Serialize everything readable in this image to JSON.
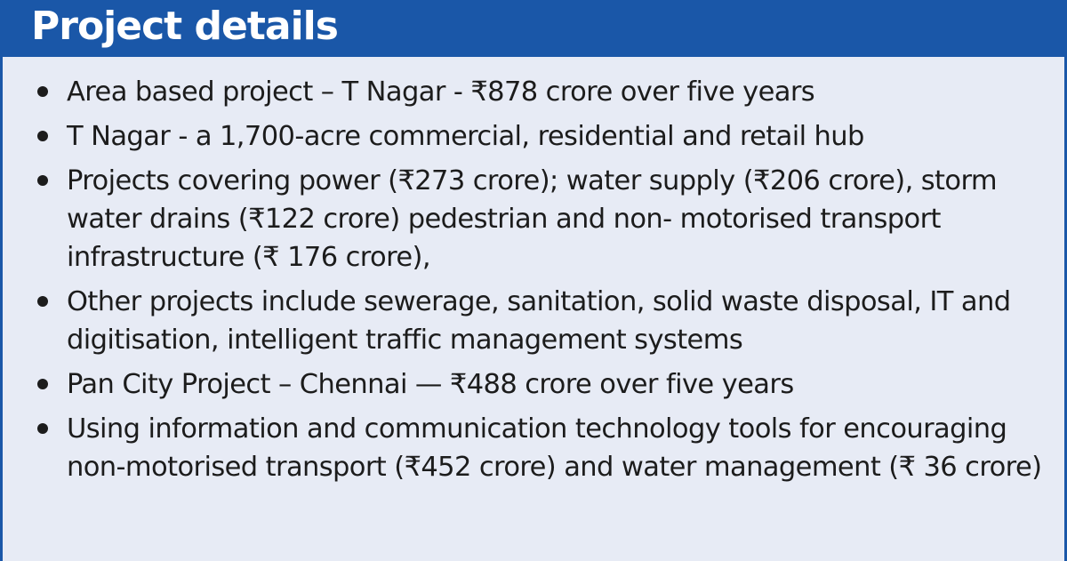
{
  "title": "Project details",
  "colors": {
    "header_background": "#1a57a8",
    "panel_background": "#e7ebf5",
    "text": "#1c1c1c"
  },
  "bullets": [
    "Area based project – T Nagar - ₹878 crore over five years",
    "T Nagar - a 1,700-acre commercial, residential and retail hub",
    "Projects covering power (₹273 crore); water supply (₹206 crore), storm water drains (₹122 crore) pedestrian and non- motorised transport infrastructure (₹ 176 crore),",
    "Other projects include sewerage, sanitation, solid waste disposal, IT and digitisation, intelligent traffic management systems",
    "Pan City Project – Chennai — ₹488 crore over five years",
    "Using information and communication technology tools for encouraging non-motorised transport (₹452 crore) and water management (₹ 36 crore)"
  ]
}
